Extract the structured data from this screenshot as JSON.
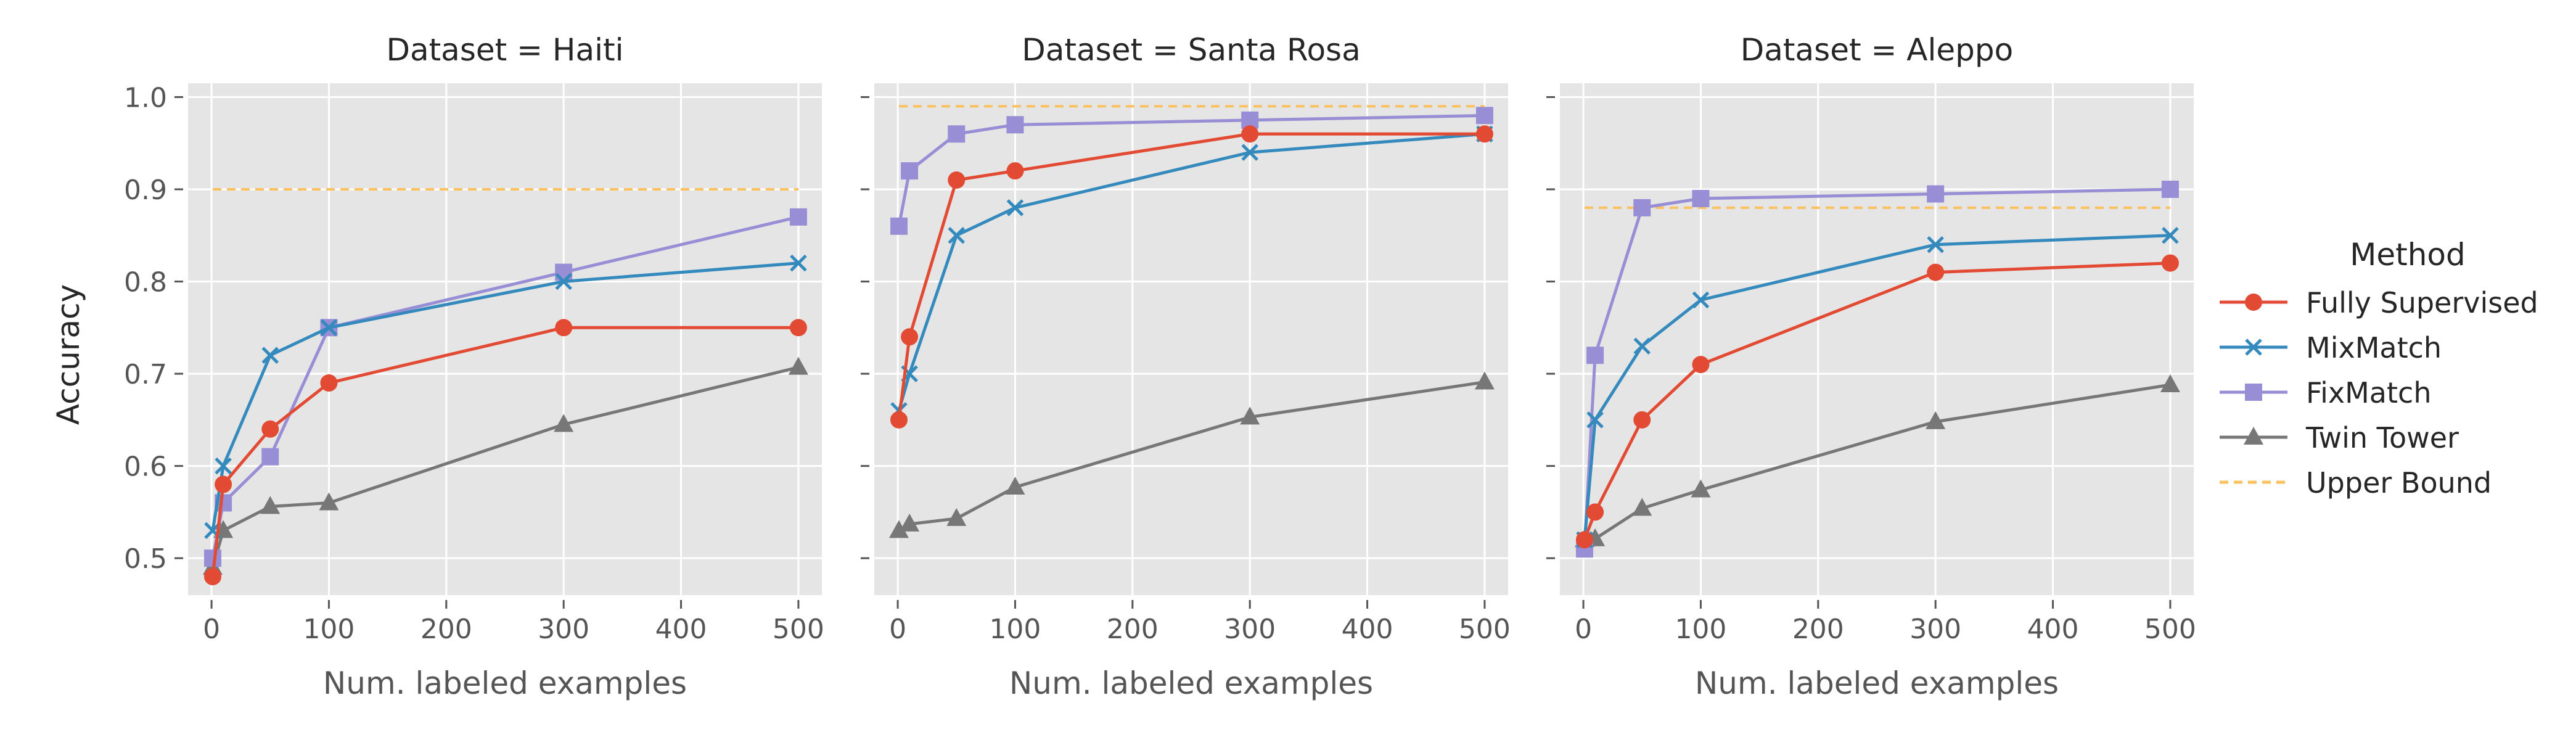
{
  "colors": {
    "panel_bg": "#E5E5E5",
    "grid": "#FFFFFF",
    "tick": "#555555",
    "text": "#262626",
    "fully_supervised": "#E24A33",
    "mixmatch": "#348ABD",
    "fixmatch": "#988ED5",
    "twin_tower": "#777777",
    "upper_bound": "#FBC15E"
  },
  "chart_data": {
    "type": "line",
    "ylabel": "Accuracy",
    "xlabel": "Num. labeled examples",
    "xlim": [
      -20,
      520
    ],
    "ylim": [
      0.46,
      1.015
    ],
    "xticks": [
      0,
      100,
      200,
      300,
      400,
      500
    ],
    "yticks": [
      0.5,
      0.6,
      0.7,
      0.8,
      0.9,
      1.0
    ],
    "ytick_labels": [
      "0.5",
      "0.6",
      "0.7",
      "0.8",
      "0.9",
      "1.0"
    ],
    "x": [
      1,
      10,
      50,
      100,
      300,
      500
    ],
    "legend": {
      "title": "Method",
      "placement": "right",
      "entries": [
        {
          "name": "Fully Supervised",
          "key": "fully_supervised",
          "marker": "circle",
          "dashed": false
        },
        {
          "name": "MixMatch",
          "key": "mixmatch",
          "marker": "x",
          "dashed": false
        },
        {
          "name": "FixMatch",
          "key": "fixmatch",
          "marker": "square",
          "dashed": false
        },
        {
          "name": "Twin Tower",
          "key": "twin_tower",
          "marker": "triangle",
          "dashed": false
        },
        {
          "name": "Upper Bound",
          "key": "upper_bound",
          "marker": "none",
          "dashed": true
        }
      ]
    },
    "panels": [
      {
        "title": "Dataset = Haiti",
        "series": [
          {
            "key": "fully_supervised",
            "values": [
              0.48,
              0.58,
              0.64,
              0.69,
              0.75,
              0.75
            ]
          },
          {
            "key": "mixmatch",
            "values": [
              0.53,
              0.6,
              0.72,
              0.75,
              0.8,
              0.82
            ]
          },
          {
            "key": "fixmatch",
            "values": [
              0.5,
              0.56,
              0.61,
              0.75,
              0.81,
              0.87
            ]
          },
          {
            "key": "twin_tower",
            "values": [
              0.49,
              0.53,
              0.556,
              0.56,
              0.645,
              0.707
            ]
          }
        ],
        "upper_bound": 0.9
      },
      {
        "title": "Dataset = Santa Rosa",
        "series": [
          {
            "key": "fully_supervised",
            "values": [
              0.65,
              0.74,
              0.91,
              0.92,
              0.96,
              0.96
            ]
          },
          {
            "key": "mixmatch",
            "values": [
              0.66,
              0.7,
              0.85,
              0.88,
              0.94,
              0.96
            ]
          },
          {
            "key": "fixmatch",
            "values": [
              0.86,
              0.92,
              0.96,
              0.97,
              0.975,
              0.98
            ]
          },
          {
            "key": "twin_tower",
            "values": [
              0.53,
              0.537,
              0.543,
              0.577,
              0.653,
              0.691
            ]
          }
        ],
        "upper_bound": 0.99
      },
      {
        "title": "Dataset = Aleppo",
        "series": [
          {
            "key": "fully_supervised",
            "values": [
              0.52,
              0.55,
              0.65,
              0.71,
              0.81,
              0.82
            ]
          },
          {
            "key": "mixmatch",
            "values": [
              0.52,
              0.65,
              0.73,
              0.78,
              0.84,
              0.85
            ]
          },
          {
            "key": "fixmatch",
            "values": [
              0.51,
              0.72,
              0.88,
              0.89,
              0.895,
              0.9
            ]
          },
          {
            "key": "twin_tower",
            "values": [
              0.52,
              0.521,
              0.554,
              0.574,
              0.648,
              0.688
            ]
          }
        ],
        "upper_bound": 0.88
      }
    ]
  }
}
